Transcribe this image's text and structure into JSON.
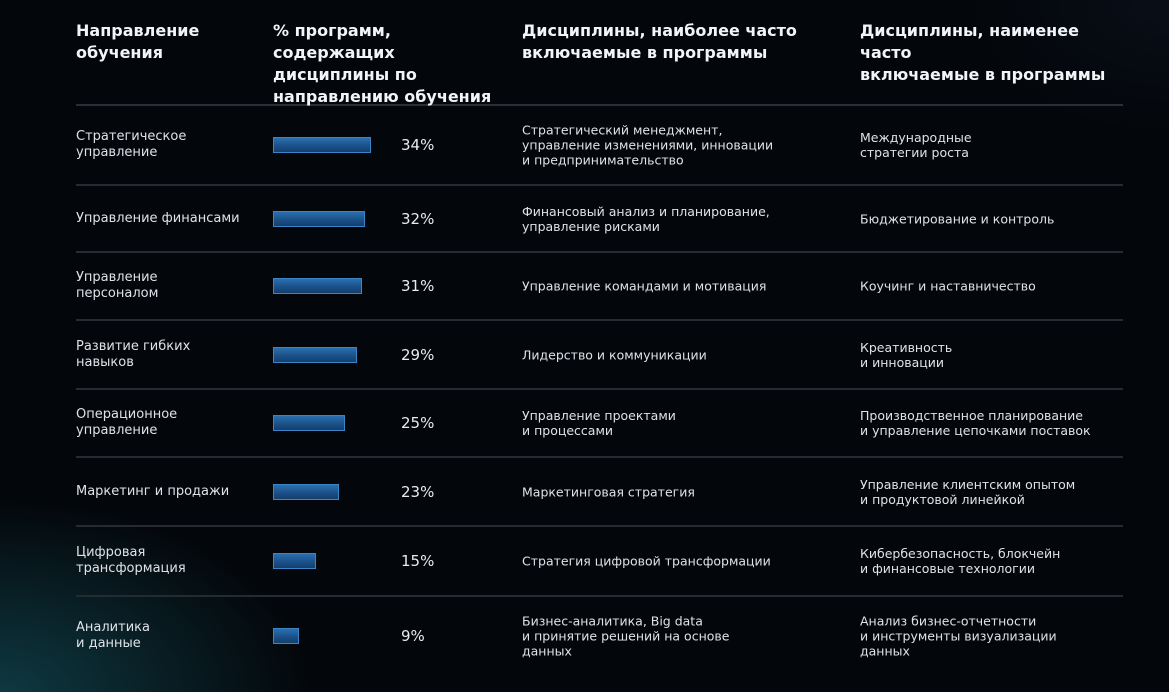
{
  "headers": {
    "direction": "Направление\nобучения",
    "percent": "% программ, содержащих\nдисциплины по\nнаправлению обучения",
    "most": "Дисциплины, наиболее часто\nвключаемые в программы",
    "least": "Дисциплины, наименее часто\nвключаемые в программы"
  },
  "chart_data": {
    "type": "bar",
    "categories": [
      "Стратегическое управление",
      "Управление финансами",
      "Управление персоналом",
      "Развитие гибких навыков",
      "Операционное управление",
      "Маркетинг и продажи",
      "Цифровая трансформация",
      "Аналитика и данные"
    ],
    "values": [
      34,
      32,
      31,
      29,
      25,
      23,
      15,
      9
    ],
    "ylim": [
      0,
      34
    ],
    "title": "",
    "xlabel": "",
    "ylabel": ""
  },
  "rows": [
    {
      "direction": "Стратегическое\nуправление",
      "value": 34,
      "label": "34%",
      "most": "Стратегический менеджмент,\nуправление изменениями, инновации\nи предпринимательство",
      "least": "Международные\nстратегии роста"
    },
    {
      "direction": "Управление финансами",
      "value": 32,
      "label": "32%",
      "most": "Финансовый анализ и планирование,\nуправление рисками",
      "least": "Бюджетирование и контроль"
    },
    {
      "direction": "Управление\nперсоналом",
      "value": 31,
      "label": "31%",
      "most": "Управление командами и мотивация",
      "least": "Коучинг и наставничество"
    },
    {
      "direction": "Развитие гибких\nнавыков",
      "value": 29,
      "label": "29%",
      "most": "Лидерство и коммуникации",
      "least": "Креативность\nи инновации"
    },
    {
      "direction": "Операционное\nуправление",
      "value": 25,
      "label": "25%",
      "most": "Управление проектами\nи процессами",
      "least": "Производственное планирование\nи управление цепочками поставок"
    },
    {
      "direction": "Маркетинг и продажи",
      "value": 23,
      "label": "23%",
      "most": "Маркетинговая стратегия",
      "least": "Управление клиентским опытом\nи продуктовой линейкой"
    },
    {
      "direction": "Цифровая\nтрансформация",
      "value": 15,
      "label": "15%",
      "most": "Стратегия цифровой трансформации",
      "least": "Кибербезопасность, блокчейн\nи финансовые технологии"
    },
    {
      "direction": "Аналитика\nи данные",
      "value": 9,
      "label": "9%",
      "most": "Бизнес-аналитика, Big data\nи принятие решений на основе\nданных",
      "least": "Анализ бизнес-отчетности\nи инструменты визуализации\nданных"
    }
  ]
}
